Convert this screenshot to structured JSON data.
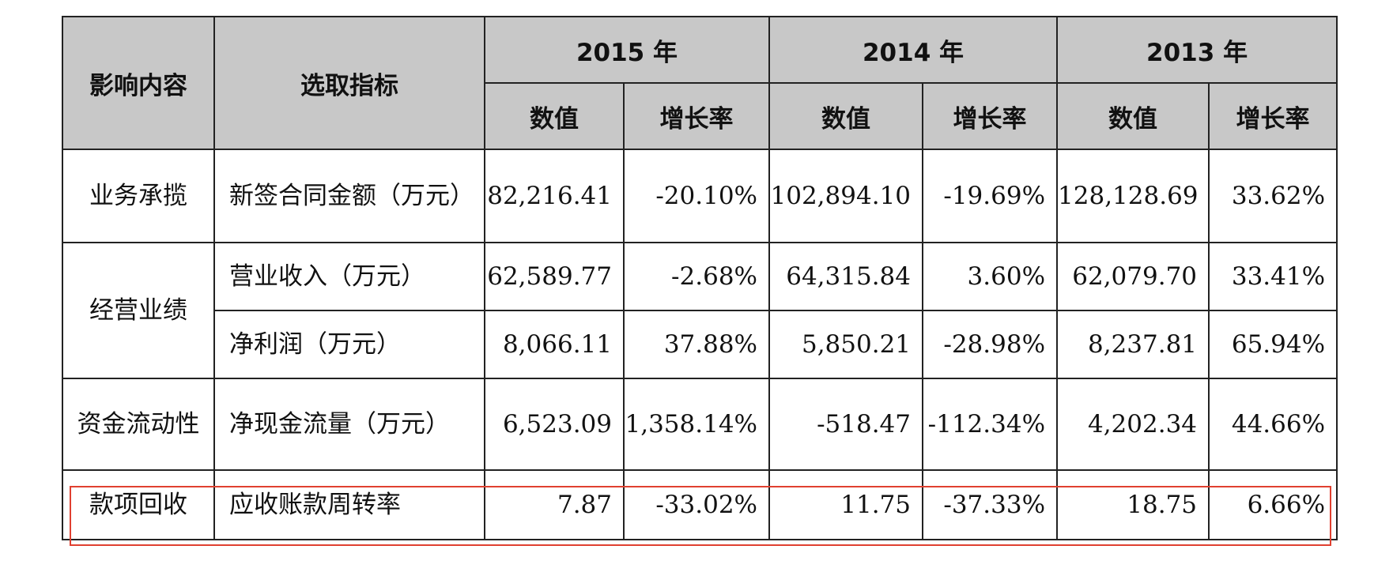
{
  "header": {
    "col1": "影响内容",
    "col2": "选取指标",
    "years": [
      "2015 年",
      "2014 年",
      "2013 年"
    ],
    "value_label": "数值",
    "growth_label": "增长率"
  },
  "rows": [
    {
      "category": "业务承揽",
      "indicator": "新签合同金额（万元）",
      "v2015": "82,216.41",
      "g2015": "-20.10%",
      "v2014": "102,894.10",
      "g2014": "-19.69%",
      "v2013": "128,128.69",
      "g2013": "33.62%"
    },
    {
      "category": "经营业绩",
      "indicator": "营业收入（万元）",
      "v2015": "62,589.77",
      "g2015": "-2.68%",
      "v2014": "64,315.84",
      "g2014": "3.60%",
      "v2013": "62,079.70",
      "g2013": "33.41%"
    },
    {
      "indicator": "净利润（万元）",
      "v2015": "8,066.11",
      "g2015": "37.88%",
      "v2014": "5,850.21",
      "g2014": "-28.98%",
      "v2013": "8,237.81",
      "g2013": "65.94%"
    },
    {
      "category": "资金流动性",
      "indicator": "净现金流量（万元）",
      "v2015": "6,523.09",
      "g2015": "1,358.14%",
      "v2014": "-518.47",
      "g2014": "-112.34%",
      "v2013": "4,202.34",
      "g2013": "44.66%"
    },
    {
      "category": "款项回收",
      "indicator": "应收账款周转率",
      "v2015": "7.87",
      "g2015": "-33.02%",
      "v2014": "11.75",
      "g2014": "-37.33%",
      "v2013": "18.75",
      "g2013": "6.66%"
    }
  ],
  "highlight_color": "#e04030"
}
